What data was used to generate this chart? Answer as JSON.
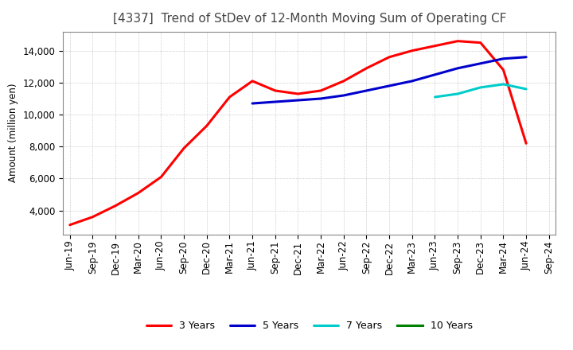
{
  "title": "[4337]  Trend of StDev of 12-Month Moving Sum of Operating CF",
  "ylabel": "Amount (million yen)",
  "ylim": [
    2500,
    15200
  ],
  "yticks": [
    4000,
    6000,
    8000,
    10000,
    12000,
    14000
  ],
  "background_color": "#ffffff",
  "grid_color": "#aaaaaa",
  "series": {
    "3 Years": {
      "color": "#ff0000",
      "dates": [
        "Jun-19",
        "Sep-19",
        "Dec-19",
        "Mar-20",
        "Jun-20",
        "Sep-20",
        "Dec-20",
        "Mar-21",
        "Jun-21",
        "Sep-21",
        "Dec-21",
        "Mar-22",
        "Jun-22",
        "Sep-22",
        "Dec-22",
        "Mar-23",
        "Jun-23",
        "Sep-23",
        "Dec-23",
        "Mar-24",
        "Jun-24"
      ],
      "values": [
        3100,
        3600,
        4300,
        5100,
        6100,
        7900,
        9300,
        11100,
        12100,
        11500,
        11300,
        11500,
        12100,
        12900,
        13600,
        14000,
        14300,
        14600,
        14500,
        12800,
        8200
      ]
    },
    "5 Years": {
      "color": "#0000cc",
      "dates": [
        "Jun-21",
        "Sep-21",
        "Dec-21",
        "Mar-22",
        "Jun-22",
        "Sep-22",
        "Dec-22",
        "Mar-23",
        "Jun-23",
        "Sep-23",
        "Dec-23",
        "Mar-24",
        "Jun-24"
      ],
      "values": [
        10700,
        10800,
        10900,
        11000,
        11200,
        11500,
        11800,
        12100,
        12500,
        12900,
        13200,
        13500,
        13600
      ]
    },
    "7 Years": {
      "color": "#00cccc",
      "dates": [
        "Jun-23",
        "Sep-23",
        "Dec-23",
        "Mar-24",
        "Jun-24"
      ],
      "values": [
        11100,
        11300,
        11700,
        11900,
        11600
      ]
    },
    "10 Years": {
      "color": "#008000",
      "dates": [],
      "values": []
    }
  },
  "xtick_labels": [
    "Jun-19",
    "Sep-19",
    "Dec-19",
    "Mar-20",
    "Jun-20",
    "Sep-20",
    "Dec-20",
    "Mar-21",
    "Jun-21",
    "Sep-21",
    "Dec-21",
    "Mar-22",
    "Jun-22",
    "Sep-22",
    "Dec-22",
    "Mar-23",
    "Jun-23",
    "Sep-23",
    "Dec-23",
    "Mar-24",
    "Jun-24",
    "Sep-24"
  ],
  "title_fontsize": 11,
  "legend_fontsize": 9,
  "tick_fontsize": 8.5
}
